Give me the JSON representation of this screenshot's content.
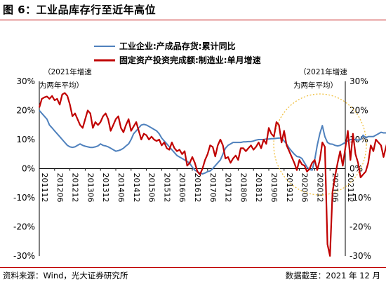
{
  "header": {
    "title": "图 6：工业品库存行至近年高位"
  },
  "footer": {
    "source": "资料来源：Wind，光大证券研究所",
    "date": "数据截至：2021 年 12 月"
  },
  "colors": {
    "inventory": "#4f81bd",
    "investment": "#c00000",
    "highlight": "#f0c040",
    "title_rule": "#c00000"
  },
  "chart_data": {
    "type": "line",
    "left_note": [
      "（2021年增速",
      "为两年平均）"
    ],
    "right_note": [
      "（2021年增速",
      "为两年平均）"
    ],
    "ylim": [
      -30,
      30
    ],
    "y_ticks": [
      "30%",
      "20%",
      "10%",
      "0%",
      "-10%",
      "-20%",
      "-30%"
    ],
    "x_ticks": [
      "201112",
      "201206",
      "201212",
      "201306",
      "201312",
      "201406",
      "201412",
      "201506",
      "201512",
      "201606",
      "201612",
      "201706",
      "201712",
      "201806",
      "201812",
      "201906",
      "201912",
      "202006",
      "202012",
      "202106",
      "202112"
    ],
    "series": [
      {
        "name": "工业企业:产成品存货:累计同比",
        "axis": "left",
        "start": "201112",
        "values": [
          20,
          19,
          18,
          17,
          15,
          14,
          13,
          12,
          11,
          10,
          9,
          8,
          7.5,
          7.3,
          7.5,
          8,
          8.5,
          8,
          7.7,
          7.5,
          7.3,
          7.3,
          7.5,
          7.8,
          8.5,
          8,
          7.8,
          7.5,
          7,
          6.5,
          6,
          6.2,
          6.5,
          7,
          7.8,
          8.5,
          10,
          12,
          13,
          14,
          15,
          15.2,
          15,
          14.5,
          14,
          13.5,
          13,
          12,
          10.5,
          9.5,
          8.5,
          7.5,
          6.5,
          5.5,
          4.5,
          4,
          3.5,
          3,
          2.5,
          1.8,
          0.5,
          -0.5,
          -1,
          -1.5,
          -1.8,
          -1.5,
          -1,
          -0.8,
          0,
          1,
          2,
          3,
          5,
          7,
          8,
          8.5,
          9,
          9,
          9,
          9,
          9.2,
          9.2,
          9.3,
          9.3,
          9.5,
          9.8,
          10,
          10,
          10,
          10.2,
          10.2,
          10.3,
          10.3,
          10.4,
          10.5,
          10.5,
          9.5,
          8.5,
          7,
          6,
          5,
          4.2,
          4,
          3.5,
          2,
          0.5,
          -0.3,
          -0.5,
          3,
          8,
          12,
          14.8,
          11,
          9,
          8.5,
          8.4,
          8,
          7.8,
          8,
          8.5,
          9,
          9.5,
          10,
          10,
          10,
          9.8,
          10,
          11.5,
          10.5,
          11,
          11,
          11,
          11.5,
          12,
          12.5,
          12.3,
          12.3
        ]
      },
      {
        "name": "固定资产投资完成额:制造业:单月增速",
        "axis": "right",
        "start": "201112",
        "values": [
          21,
          24,
          24.5,
          24.8,
          24,
          25,
          23.5,
          24,
          22,
          25.5,
          26,
          25,
          22,
          18,
          19,
          17,
          15,
          14,
          17,
          20,
          19,
          14,
          16,
          15,
          16,
          18,
          19,
          17,
          13,
          15,
          17,
          18,
          14,
          12.5,
          15,
          17,
          13,
          14.5,
          16,
          13,
          10,
          12,
          11.5,
          10,
          11,
          10,
          9.5,
          10,
          8,
          9,
          7,
          6.5,
          9,
          7,
          6,
          6.5,
          5,
          6,
          1,
          2,
          4,
          2,
          -1,
          -2,
          0,
          3,
          5,
          8,
          7.5,
          4.2,
          8,
          10,
          8,
          3.5,
          4,
          2,
          3.5,
          4.5,
          3,
          7,
          7,
          6,
          7,
          8,
          6.5,
          7.5,
          9,
          7,
          10,
          8.5,
          14,
          12,
          11,
          16,
          15,
          9,
          13,
          8,
          6,
          4,
          2,
          -0.5,
          3,
          1.5,
          1,
          -1,
          0,
          2,
          3,
          -0.5,
          3,
          9,
          7.5,
          -26,
          -30,
          -8,
          -2.5,
          2,
          6,
          1,
          7,
          13,
          3,
          12,
          5,
          2,
          -3,
          -2,
          -1,
          2,
          8,
          6,
          10,
          9,
          8,
          4,
          7.5,
          11,
          10
        ]
      }
    ],
    "annotations": [
      {
        "type": "ellipse",
        "label": "",
        "target": "2020-2021 spike"
      }
    ]
  }
}
